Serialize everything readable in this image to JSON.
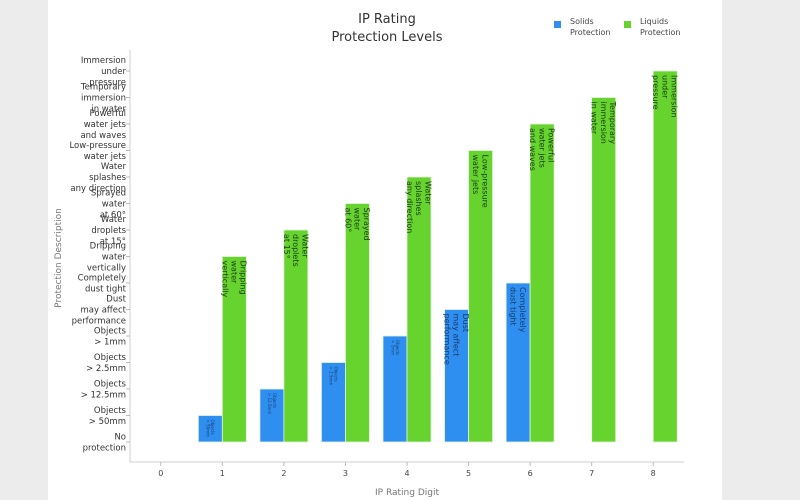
{
  "chart_data": {
    "type": "bar",
    "title_lines": [
      "IP Rating",
      "Protection Levels"
    ],
    "xlabel": "IP Rating Digit",
    "ylabel": "Protection Description",
    "x_ticks": [
      0,
      1,
      2,
      3,
      4,
      5,
      6,
      7,
      8
    ],
    "ylim": [
      0,
      14
    ],
    "grid": false,
    "legend_position": "top-right",
    "y_tick_labels": [
      [
        "No",
        "protection"
      ],
      [
        "Objects",
        "> 50mm"
      ],
      [
        "Objects",
        "> 12.5mm"
      ],
      [
        "Objects",
        "> 2.5mm"
      ],
      [
        "Objects",
        "> 1mm"
      ],
      [
        "Dust",
        "may affect",
        "performance"
      ],
      [
        "Completely",
        "dust tight"
      ],
      [
        "Dripping",
        "water",
        "vertically"
      ],
      [
        "Water",
        "droplets",
        "at 15°"
      ],
      [
        "Sprayed",
        "water",
        "at 60°"
      ],
      [
        "Water",
        "splashes",
        "any direction"
      ],
      [
        "Low-pressure",
        "water jets"
      ],
      [
        "Powerful",
        "water jets",
        "and waves"
      ],
      [
        "Temporary",
        "immersion",
        "in water"
      ],
      [
        "Immersion",
        "under",
        "pressure"
      ]
    ],
    "series": [
      {
        "name": "Solids Protection",
        "legend_lines": [
          "Solids",
          "Protection"
        ],
        "color": "#2f8ff0",
        "x": [
          1,
          2,
          3,
          4,
          5,
          6
        ],
        "values": [
          1,
          2,
          3,
          4,
          5,
          6
        ],
        "labels": [
          [
            "Objects",
            "> 50mm"
          ],
          [
            "Objects",
            "> 12.5mm"
          ],
          [
            "Objects",
            "> 2.5mm"
          ],
          [
            "Objects",
            "> 1mm"
          ],
          [
            "Dust",
            "may affect",
            "performance"
          ],
          [
            "Completely",
            "dust tight"
          ]
        ]
      },
      {
        "name": "Liquids Protection",
        "legend_lines": [
          "Liquids",
          "Protection"
        ],
        "color": "#66d32f",
        "x": [
          1,
          2,
          3,
          4,
          5,
          6,
          7,
          8
        ],
        "values": [
          7,
          8,
          9,
          10,
          11,
          12,
          13,
          14
        ],
        "labels": [
          [
            "Dripping",
            "water",
            "vertically"
          ],
          [
            "Water",
            "droplets",
            "at 15°"
          ],
          [
            "Sprayed",
            "water",
            "at 60°"
          ],
          [
            "Water",
            "splashes",
            "any direction"
          ],
          [
            "Low-pressure",
            "water jets"
          ],
          [
            "Powerful",
            "water jets",
            "and waves"
          ],
          [
            "Temporary",
            "immersion",
            "in water"
          ],
          [
            "Immersion",
            "under",
            "pressure"
          ]
        ]
      }
    ]
  }
}
